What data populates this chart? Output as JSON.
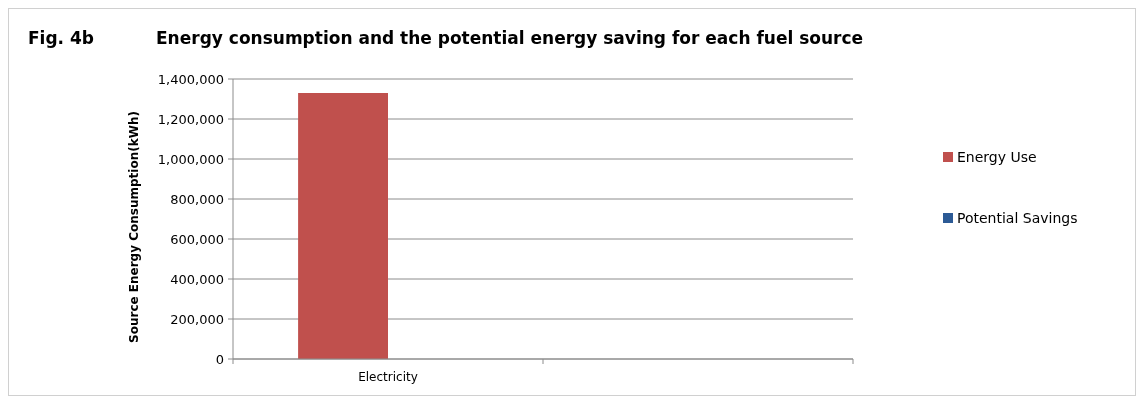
{
  "chart_data": {
    "type": "bar",
    "title": "Energy consumption and the potential energy saving for each fuel source",
    "ylabel": "Source Energy Consumption(kWh)",
    "annotations": [
      "Fig. 4b"
    ],
    "categories": [
      "Electricity",
      null
    ],
    "series": [
      {
        "name": "Energy Use",
        "color": "#c0504d",
        "values": [
          1330000,
          null
        ]
      },
      {
        "name": "Potential Savings",
        "color": "#2c5a95",
        "values": [
          null,
          null
        ]
      }
    ],
    "ylim": [
      0,
      1400000
    ],
    "yticks": [
      {
        "value": 0,
        "label": "0"
      },
      {
        "value": 200000,
        "label": "200,000"
      },
      {
        "value": 400000,
        "label": "400,000"
      },
      {
        "value": 600000,
        "label": "600,000"
      },
      {
        "value": 800000,
        "label": "800,000"
      },
      {
        "value": 1000000,
        "label": "1,000,000"
      },
      {
        "value": 1200000,
        "label": "1,200,000"
      },
      {
        "value": 1400000,
        "label": "1,400,000"
      }
    ],
    "grid": "y",
    "legend": "right"
  }
}
